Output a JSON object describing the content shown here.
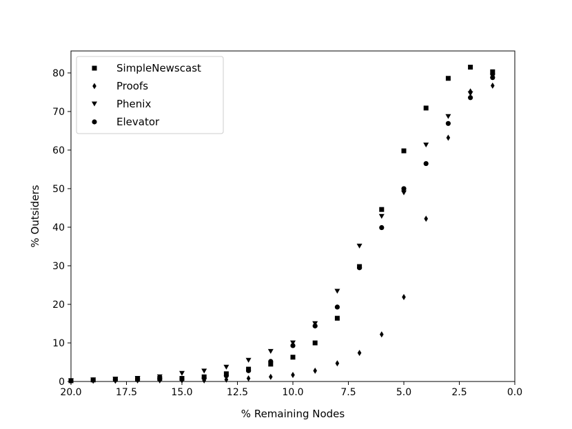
{
  "chart_data": {
    "type": "scatter",
    "title": "",
    "xlabel": "% Remaining Nodes",
    "ylabel": "% Outsiders",
    "xlim": [
      20,
      0
    ],
    "ylim": [
      0,
      85.7
    ],
    "xticks": [
      20,
      17.5,
      15,
      12.5,
      10,
      7.5,
      5,
      2.5,
      0
    ],
    "xtick_labels": [
      "20.0",
      "17.5",
      "15.0",
      "12.5",
      "10.0",
      "7.5",
      "5.0",
      "2.5",
      "0.0"
    ],
    "yticks": [
      0,
      10,
      20,
      30,
      40,
      50,
      60,
      70,
      80
    ],
    "ytick_labels": [
      "0",
      "10",
      "20",
      "30",
      "40",
      "50",
      "60",
      "70",
      "80"
    ],
    "grid": false,
    "legend_position": "top-left",
    "x": [
      20,
      19,
      18,
      17,
      16,
      15,
      14,
      13,
      12,
      11,
      10,
      9,
      8,
      7,
      6,
      5,
      4,
      3,
      2,
      1
    ],
    "series": [
      {
        "name": "SimpleNewscast",
        "marker": "square",
        "values": [
          0.2,
          0.4,
          0.6,
          0.7,
          0.8,
          0.8,
          1.2,
          2.0,
          3.2,
          4.5,
          6.3,
          10,
          16.4,
          29.8,
          44.6,
          59.8,
          70.9,
          78.6,
          81.5,
          80.3
        ]
      },
      {
        "name": "Proofs",
        "marker": "diamond",
        "values": [
          0.1,
          0.2,
          0.2,
          0.3,
          0.3,
          0.3,
          0.3,
          0.5,
          0.8,
          1.2,
          1.7,
          2.8,
          4.7,
          7.4,
          12.2,
          21.9,
          42.2,
          63.2,
          75.2,
          76.7
        ]
      },
      {
        "name": "Phenix",
        "marker": "triangle-down",
        "values": [
          0.2,
          0.4,
          0.6,
          0.8,
          1.2,
          2.1,
          2.7,
          3.7,
          5.5,
          7.8,
          10,
          15,
          23.4,
          35.1,
          42.8,
          48.9,
          61.3,
          68.7,
          74.6,
          79.1
        ]
      },
      {
        "name": "Elevator",
        "marker": "circle",
        "values": [
          0.2,
          0.4,
          0.5,
          0.6,
          0.8,
          0.7,
          0.9,
          1.5,
          2.8,
          5.2,
          9.3,
          14.4,
          19.3,
          29.5,
          39.9,
          50.0,
          56.5,
          66.9,
          73.6,
          78.8
        ]
      }
    ]
  }
}
